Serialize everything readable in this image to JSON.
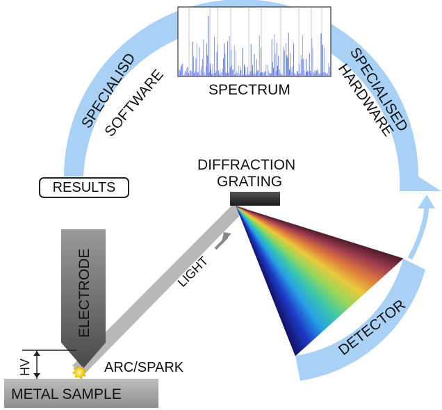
{
  "labels": {
    "software": [
      "SPECIALISD",
      "SOFTWARE"
    ],
    "hardware": [
      "SPECIALISED",
      "HARDWARE"
    ],
    "spectrum": "SPECTRUM",
    "results": "RESULTS",
    "grating": [
      "DIFFRACTION",
      "GRATING"
    ],
    "light": "LIGHT",
    "electrode": "ELECTRODE",
    "hv": "HV",
    "arc": "ARC/SPARK",
    "metal_sample": "METAL SAMPLE",
    "detector": "DETECTOR"
  },
  "colors": {
    "ring": "#a9d0f5",
    "beam": "#b8b8b8",
    "grating": "#2e2e2e",
    "spark": "#f5d21a",
    "electrode_top": "#7a7a7a",
    "spectrum_line": "#2a4bd6"
  }
}
